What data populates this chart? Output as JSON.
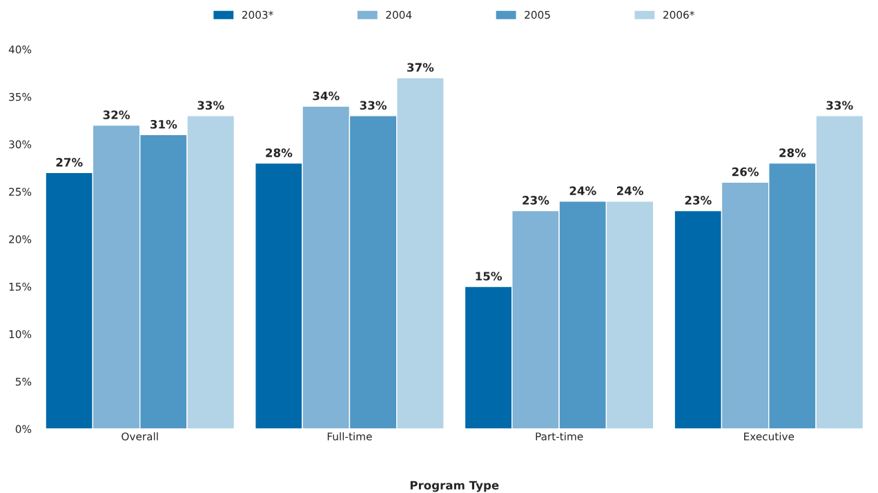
{
  "chart_data": {
    "type": "bar",
    "xlabel": "Program Type",
    "categories": [
      "Overall",
      "Full-time",
      "Part-time",
      "Executive"
    ],
    "series": [
      {
        "name": "2003*",
        "color": "#0069aa",
        "values": [
          27,
          28,
          15,
          23
        ],
        "value_labels": [
          "27%",
          "28%",
          "15%",
          "23%"
        ]
      },
      {
        "name": "2004",
        "color": "#80b3d5",
        "values": [
          32,
          34,
          23,
          26
        ],
        "value_labels": [
          "32%",
          "34%",
          "23%",
          "26%"
        ]
      },
      {
        "name": "2005",
        "color": "#4f97c5",
        "values": [
          31,
          33,
          24,
          28
        ],
        "value_labels": [
          "31%",
          "33%",
          "24%",
          "28%"
        ]
      },
      {
        "name": "2006*",
        "color": "#b3d3e6",
        "values": [
          33,
          37,
          24,
          33
        ],
        "value_labels": [
          "33%",
          "37%",
          "24%",
          "33%"
        ]
      }
    ],
    "ylim": [
      0,
      40
    ],
    "yticks": [
      {
        "value": 0,
        "label": "0%"
      },
      {
        "value": 5,
        "label": "5%"
      },
      {
        "value": 10,
        "label": "10%"
      },
      {
        "value": 15,
        "label": "15%"
      },
      {
        "value": 20,
        "label": "20%"
      },
      {
        "value": 25,
        "label": "25%"
      },
      {
        "value": 30,
        "label": "30%"
      },
      {
        "value": 35,
        "label": "35%"
      },
      {
        "value": 40,
        "label": "40%"
      }
    ],
    "grid": false,
    "legend": "top"
  }
}
